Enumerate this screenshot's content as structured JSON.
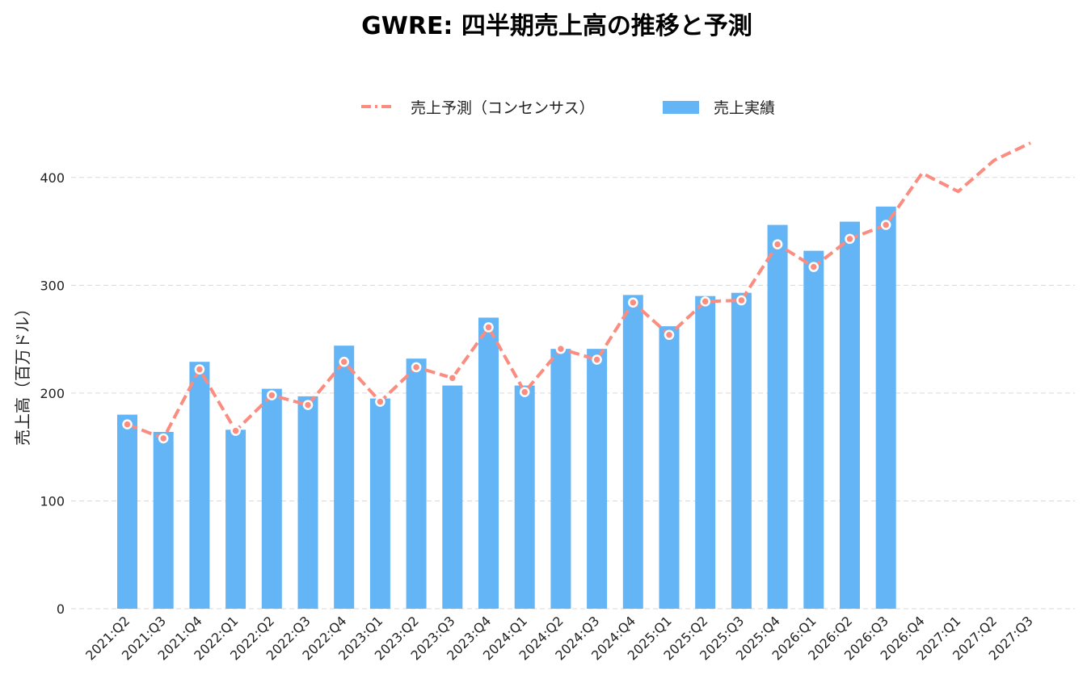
{
  "chart_data": {
    "type": "bar",
    "title": "GWRE: 四半期売上高の推移と予測",
    "xlabel": "",
    "ylabel": "売上高（百万ドル）",
    "ylim": [
      0,
      430
    ],
    "yticks": [
      0,
      100,
      200,
      300,
      400
    ],
    "grid": true,
    "legend_position": "top-center",
    "categories": [
      "2021:Q2",
      "2021:Q3",
      "2021:Q4",
      "2022:Q1",
      "2022:Q2",
      "2022:Q3",
      "2022:Q4",
      "2023:Q1",
      "2023:Q2",
      "2023:Q3",
      "2023:Q4",
      "2024:Q1",
      "2024:Q2",
      "2024:Q3",
      "2024:Q4",
      "2025:Q1",
      "2025:Q2",
      "2025:Q3",
      "2025:Q4",
      "2026:Q1",
      "2026:Q2",
      "2026:Q3",
      "2026:Q4",
      "2027:Q1",
      "2027:Q2",
      "2027:Q3"
    ],
    "series": [
      {
        "name": "売上実績",
        "type": "bar",
        "color": "#64B5F6",
        "values": [
          180,
          164,
          229,
          166,
          204,
          197,
          244,
          195,
          232,
          207,
          270,
          207,
          241,
          241,
          291,
          262,
          290,
          293,
          356,
          332,
          359,
          373,
          null,
          null,
          null,
          null
        ]
      },
      {
        "name": "売上予測（コンセンサス）",
        "type": "line",
        "style": "dashed",
        "color": "#FA8C80",
        "values": [
          171,
          158,
          222,
          165,
          198,
          189,
          229,
          192,
          224,
          214,
          261,
          201,
          241,
          231,
          284,
          254,
          285,
          286,
          338,
          317,
          343,
          356,
          404,
          387,
          416,
          432
        ]
      }
    ]
  }
}
